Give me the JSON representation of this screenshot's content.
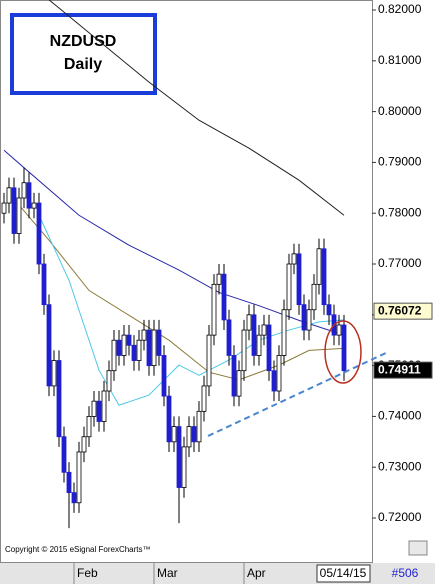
{
  "chart_data": {
    "type": "candlestick",
    "title": "NZDUSD",
    "subtitle": "Daily",
    "copyright": "Copyright © 2015 eSignal ForexCharts™",
    "last_date": "05/14/15",
    "footer_label": "#506",
    "up_color": "#ffffff",
    "down_color": "#1f1fd0",
    "open": [
      0.78,
      0.782,
      0.785,
      0.776,
      0.783,
      0.786,
      0.781,
      0.782,
      0.77,
      0.762,
      0.746,
      0.751,
      0.736,
      0.729,
      0.725,
      0.723,
      0.733,
      0.736,
      0.74,
      0.743,
      0.739,
      0.745,
      0.749,
      0.755,
      0.752,
      0.756,
      0.754,
      0.751,
      0.755,
      0.757,
      0.75,
      0.757,
      0.752,
      0.744,
      0.735,
      0.738,
      0.726,
      0.734,
      0.738,
      0.735,
      0.741,
      0.746,
      0.756,
      0.766,
      0.768,
      0.759,
      0.752,
      0.744,
      0.749,
      0.757,
      0.76,
      0.752,
      0.756,
      0.758,
      0.749,
      0.745,
      0.752,
      0.761,
      0.77,
      0.772,
      0.762,
      0.757,
      0.761,
      0.766,
      0.773,
      0.762,
      0.76,
      0.756,
      0.758
    ],
    "high": [
      0.784,
      0.787,
      0.787,
      0.785,
      0.789,
      0.788,
      0.784,
      0.784,
      0.772,
      0.764,
      0.753,
      0.753,
      0.738,
      0.731,
      0.727,
      0.735,
      0.738,
      0.742,
      0.745,
      0.745,
      0.747,
      0.751,
      0.757,
      0.757,
      0.758,
      0.758,
      0.756,
      0.757,
      0.759,
      0.759,
      0.759,
      0.759,
      0.754,
      0.746,
      0.74,
      0.74,
      0.736,
      0.74,
      0.74,
      0.743,
      0.748,
      0.758,
      0.768,
      0.77,
      0.77,
      0.761,
      0.754,
      0.751,
      0.759,
      0.762,
      0.762,
      0.758,
      0.76,
      0.76,
      0.751,
      0.754,
      0.763,
      0.772,
      0.774,
      0.774,
      0.764,
      0.763,
      0.768,
      0.775,
      0.775,
      0.764,
      0.762,
      0.76,
      0.76
    ],
    "low": [
      0.778,
      0.78,
      0.774,
      0.774,
      0.781,
      0.779,
      0.779,
      0.768,
      0.76,
      0.744,
      0.744,
      0.734,
      0.727,
      0.718,
      0.721,
      0.721,
      0.731,
      0.734,
      0.738,
      0.737,
      0.737,
      0.743,
      0.747,
      0.75,
      0.75,
      0.752,
      0.749,
      0.749,
      0.753,
      0.748,
      0.748,
      0.75,
      0.742,
      0.733,
      0.733,
      0.719,
      0.724,
      0.732,
      0.733,
      0.733,
      0.739,
      0.744,
      0.754,
      0.764,
      0.757,
      0.75,
      0.742,
      0.742,
      0.747,
      0.755,
      0.75,
      0.75,
      0.754,
      0.747,
      0.743,
      0.743,
      0.75,
      0.759,
      0.768,
      0.76,
      0.755,
      0.755,
      0.759,
      0.764,
      0.76,
      0.758,
      0.754,
      0.754,
      0.747
    ],
    "close": [
      0.782,
      0.785,
      0.776,
      0.783,
      0.786,
      0.781,
      0.782,
      0.77,
      0.762,
      0.746,
      0.751,
      0.736,
      0.729,
      0.725,
      0.723,
      0.733,
      0.736,
      0.74,
      0.743,
      0.739,
      0.745,
      0.749,
      0.755,
      0.752,
      0.756,
      0.754,
      0.751,
      0.755,
      0.757,
      0.75,
      0.757,
      0.752,
      0.744,
      0.735,
      0.738,
      0.726,
      0.734,
      0.738,
      0.735,
      0.741,
      0.746,
      0.756,
      0.766,
      0.768,
      0.759,
      0.752,
      0.744,
      0.749,
      0.757,
      0.76,
      0.752,
      0.756,
      0.758,
      0.749,
      0.745,
      0.752,
      0.761,
      0.77,
      0.772,
      0.762,
      0.757,
      0.761,
      0.766,
      0.773,
      0.762,
      0.76,
      0.756,
      0.758,
      0.749
    ],
    "lines": [
      {
        "color": "#222222",
        "x": [
          9,
          11,
          29,
          39,
          49,
          59,
          68
        ],
        "values": [
          0.822,
          0.8204,
          0.8058,
          0.7983,
          0.7928,
          0.7865,
          0.7796
        ]
      },
      {
        "color": "#2a2aa8",
        "x": [
          0,
          5,
          15,
          25,
          35,
          43,
          51,
          59,
          68
        ],
        "values": [
          0.7924,
          0.7881,
          0.7796,
          0.7737,
          0.7688,
          0.7644,
          0.7618,
          0.7589,
          0.756
        ]
      },
      {
        "color": "#8a7a3a",
        "x": [
          3,
          9,
          17,
          25,
          33,
          41,
          47,
          55,
          61,
          68
        ],
        "values": [
          0.7816,
          0.7747,
          0.7648,
          0.7599,
          0.755,
          0.7487,
          0.7472,
          0.7501,
          0.753,
          0.7534
        ]
      },
      {
        "color": "#4cc8e8",
        "x": [
          7,
          13,
          19,
          23,
          29,
          35,
          39,
          45,
          51,
          57,
          63,
          68
        ],
        "values": [
          0.7796,
          0.7668,
          0.7491,
          0.7422,
          0.7442,
          0.7501,
          0.7481,
          0.7511,
          0.755,
          0.757,
          0.7586,
          0.759
        ]
      }
    ],
    "price_labels": [
      {
        "value": 0.76072,
        "label": "0.76072",
        "color": "#fffbd0"
      },
      {
        "value": 0.74911,
        "label": "0.74911",
        "color": "#000000"
      }
    ],
    "xlim": [
      -0.8,
      73.6
    ],
    "ylim": [
      0.71272,
      0.82197
    ],
    "xticks": [
      {
        "value": 14,
        "label": "Feb"
      },
      {
        "value": 30,
        "label": "Mar"
      },
      {
        "value": 48,
        "label": "Apr"
      }
    ],
    "yticks": [
      {
        "value": 0.72,
        "label": "0.72000"
      },
      {
        "value": 0.73,
        "label": "0.73000"
      },
      {
        "value": 0.74,
        "label": "0.74000"
      },
      {
        "value": 0.75,
        "label": "0.75000"
      },
      {
        "value": 0.76,
        "label": "0.76000"
      },
      {
        "value": 0.77,
        "label": "0.77000"
      },
      {
        "value": 0.78,
        "label": "0.78000"
      },
      {
        "value": 0.79,
        "label": "0.79000"
      },
      {
        "value": 0.8,
        "label": "0.80000"
      },
      {
        "value": 0.81,
        "label": "0.81000"
      },
      {
        "value": 0.82,
        "label": "0.82000"
      }
    ]
  }
}
